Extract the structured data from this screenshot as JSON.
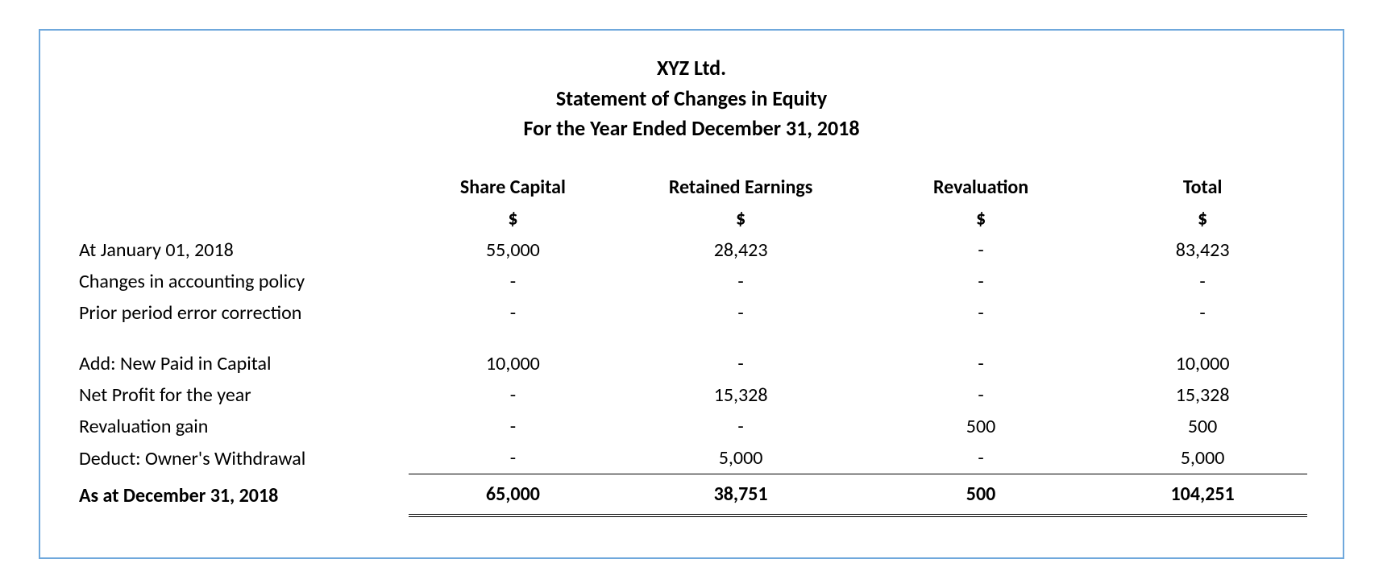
{
  "colors": {
    "border": "#6fa8dc",
    "text": "#000000",
    "background": "#ffffff",
    "rule": "#000000"
  },
  "typography": {
    "family": "Calibri",
    "title_fontsize": 26,
    "body_fontsize": 24,
    "title_weight": 700,
    "totals_weight": 700
  },
  "header": {
    "company": "XYZ Ltd.",
    "statement": "Statement of Changes in Equity",
    "period": "For the Year Ended December 31, 2018"
  },
  "columns": {
    "c1": {
      "label": "Share Capital",
      "unit": "$",
      "width_pct": 17
    },
    "c2": {
      "label": "Retained Earnings",
      "unit": "$",
      "width_pct": 20
    },
    "c3": {
      "label": "Revaluation",
      "unit": "$",
      "width_pct": 19
    },
    "c4": {
      "label": "Total",
      "unit": "$",
      "width_pct": 17
    },
    "label_width_pct": 27
  },
  "rows": [
    {
      "label": "At January 01, 2018",
      "c1": "55,000",
      "c2": "28,423",
      "c3": "-",
      "c4": "83,423"
    },
    {
      "label": "Changes in accounting policy",
      "c1": "-",
      "c2": "-",
      "c3": "-",
      "c4": "-"
    },
    {
      "label": "Prior period error correction",
      "c1": "-",
      "c2": "-",
      "c3": "-",
      "c4": "-"
    },
    {
      "label": "Add: New Paid in Capital",
      "c1": "10,000",
      "c2": "-",
      "c3": "-",
      "c4": "10,000"
    },
    {
      "label": "Net Profit for the year",
      "c1": "-",
      "c2": "15,328",
      "c3": "-",
      "c4": "15,328"
    },
    {
      "label": "Revaluation gain",
      "c1": "-",
      "c2": "-",
      "c3": "500",
      "c4": "500"
    },
    {
      "label": "Deduct: Owner's Withdrawal",
      "c1": "-",
      "c2": "5,000",
      "c3": "-",
      "c4": "5,000"
    }
  ],
  "totals": {
    "label": "As at December 31, 2018",
    "c1": "65,000",
    "c2": "38,751",
    "c3": "500",
    "c4": "104,251"
  }
}
